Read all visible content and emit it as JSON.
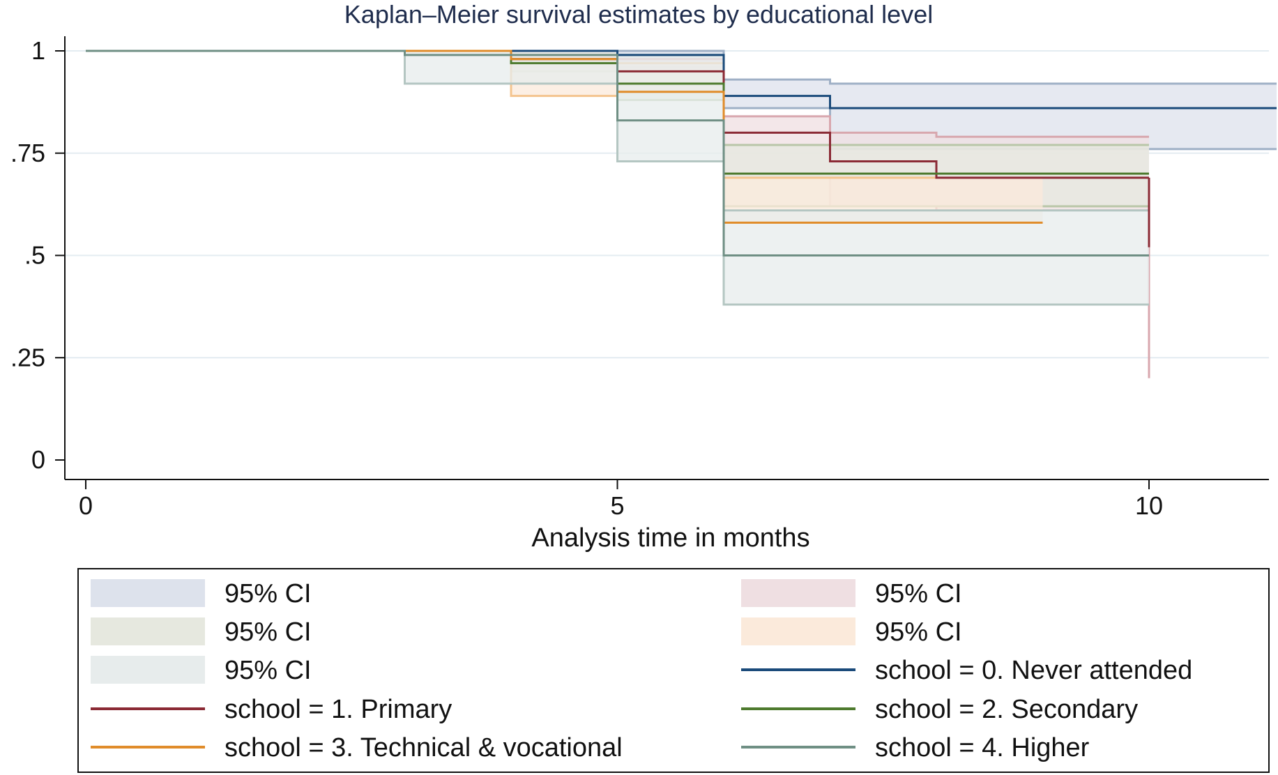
{
  "chart_data": {
    "type": "line",
    "title": "Kaplan–Meier survival estimates by educational level",
    "xlabel": "Analysis time in months",
    "ylabel": "",
    "xlim": [
      0,
      11.2
    ],
    "ylim": [
      0,
      1
    ],
    "x_ticks": [
      0,
      5,
      10
    ],
    "x_tick_labels": [
      "0",
      "5",
      "10"
    ],
    "y_ticks": [
      0,
      0.25,
      0.5,
      0.75,
      1
    ],
    "y_tick_labels": [
      "0",
      ".25",
      ".5",
      ".75",
      "1"
    ],
    "grid": true,
    "series": [
      {
        "name": "school = 0. Never attended",
        "color": "#1a4a7a",
        "ci_color": "#dde2ec",
        "ci_edge": "#9fb0c6",
        "step_x": [
          0,
          5,
          6,
          7,
          11.2
        ],
        "survival": [
          1.0,
          0.99,
          0.89,
          0.86,
          0.86
        ],
        "ci_lower": [
          1.0,
          0.96,
          0.86,
          0.76,
          0.76
        ],
        "ci_upper": [
          1.0,
          1.0,
          0.93,
          0.92,
          0.92
        ]
      },
      {
        "name": "school = 1. Primary",
        "color": "#8b2a35",
        "ci_color": "#efdfe2",
        "ci_edge": "#d8a7ae",
        "step_x": [
          0,
          4,
          5,
          6,
          7,
          8,
          10
        ],
        "survival": [
          1.0,
          0.98,
          0.95,
          0.8,
          0.73,
          0.69,
          0.69
        ],
        "drop_at_end": 0.52,
        "ci_lower": [
          1.0,
          0.96,
          0.9,
          0.69,
          0.62,
          0.61,
          0.61
        ],
        "ci_upper": [
          1.0,
          1.0,
          0.98,
          0.84,
          0.8,
          0.79,
          0.79
        ],
        "ci_drop_lower": 0.2
      },
      {
        "name": "school = 2. Secondary",
        "color": "#4e7a2e",
        "ci_color": "#e6e8df",
        "ci_edge": "#b9c6a8",
        "step_x": [
          0,
          4,
          5,
          6,
          10
        ],
        "survival": [
          1.0,
          0.97,
          0.92,
          0.7,
          0.7
        ],
        "ci_lower": [
          1.0,
          0.95,
          0.88,
          0.62,
          0.62
        ],
        "ci_upper": [
          1.0,
          0.99,
          0.95,
          0.77,
          0.77
        ]
      },
      {
        "name": "school = 3. Technical & vocational",
        "color": "#e08c2a",
        "ci_color": "#fbeadb",
        "ci_edge": "#f4c48e",
        "step_x": [
          0,
          4,
          5,
          6,
          9
        ],
        "survival": [
          1.0,
          0.98,
          0.9,
          0.58,
          0.58
        ],
        "ci_lower": [
          1.0,
          0.89,
          0.9,
          0.58,
          0.58
        ],
        "ci_upper": [
          1.0,
          1.0,
          0.97,
          0.69,
          0.69
        ]
      },
      {
        "name": "school = 4. Higher",
        "color": "#6f8f84",
        "ci_color": "#e7ecec",
        "ci_edge": "#b4c6c2",
        "step_x": [
          0,
          3,
          5,
          6,
          10
        ],
        "survival": [
          1.0,
          0.99,
          0.83,
          0.5,
          0.5
        ],
        "ci_lower": [
          1.0,
          0.92,
          0.73,
          0.38,
          0.38
        ],
        "ci_upper": [
          1.0,
          1.0,
          0.99,
          0.61,
          0.61
        ]
      }
    ],
    "legend": {
      "placement": "bottom",
      "entries": [
        {
          "label": "95% CI",
          "kind": "patch",
          "color": "#dde2ec"
        },
        {
          "label": "95% CI",
          "kind": "patch",
          "color": "#efdfe2"
        },
        {
          "label": "95% CI",
          "kind": "patch",
          "color": "#e6e8df"
        },
        {
          "label": "95% CI",
          "kind": "patch",
          "color": "#fbeadb"
        },
        {
          "label": "95% CI",
          "kind": "patch",
          "color": "#e7ecec"
        },
        {
          "label": "school = 0. Never attended",
          "kind": "line",
          "color": "#1a4a7a"
        },
        {
          "label": "school = 1. Primary",
          "kind": "line",
          "color": "#8b2a35"
        },
        {
          "label": "school = 2. Secondary",
          "kind": "line",
          "color": "#4e7a2e"
        },
        {
          "label": "school = 3. Technical & vocational",
          "kind": "line",
          "color": "#e08c2a"
        },
        {
          "label": "school = 4. Higher",
          "kind": "line",
          "color": "#6f8f84"
        }
      ]
    }
  }
}
